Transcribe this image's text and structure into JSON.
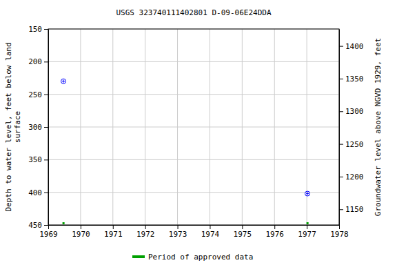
{
  "chart_data": {
    "type": "scatter",
    "title": "USGS 323740111402801 D-09-06E24DDA",
    "ylabel": [
      "Depth to water level, feet below land",
      "surface"
    ],
    "y2label": "Groundwater level above NGVD 1929, feet",
    "xlim": [
      1969,
      1978
    ],
    "xticks": [
      1969,
      1970,
      1971,
      1972,
      1973,
      1974,
      1975,
      1976,
      1977,
      1978
    ],
    "ylim": [
      450,
      150
    ],
    "yticks": [
      150,
      200,
      250,
      300,
      350,
      400,
      450
    ],
    "y2lim": [
      1126,
      1426
    ],
    "y2ticks": [
      1150,
      1200,
      1250,
      1300,
      1350,
      1400
    ],
    "grid": true,
    "legend": "bottom",
    "series": [
      {
        "type": "scatter",
        "color": "#0000ff",
        "marker": "circle-plus",
        "x": [
          1969.47,
          1977.02
        ],
        "values": [
          230,
          402
        ]
      },
      {
        "type": "period",
        "name": "Period of approved data",
        "color": "#00a000",
        "x": [
          [
            1969.44,
            1969.5
          ],
          [
            1976.99,
            1977.05
          ]
        ]
      }
    ]
  }
}
